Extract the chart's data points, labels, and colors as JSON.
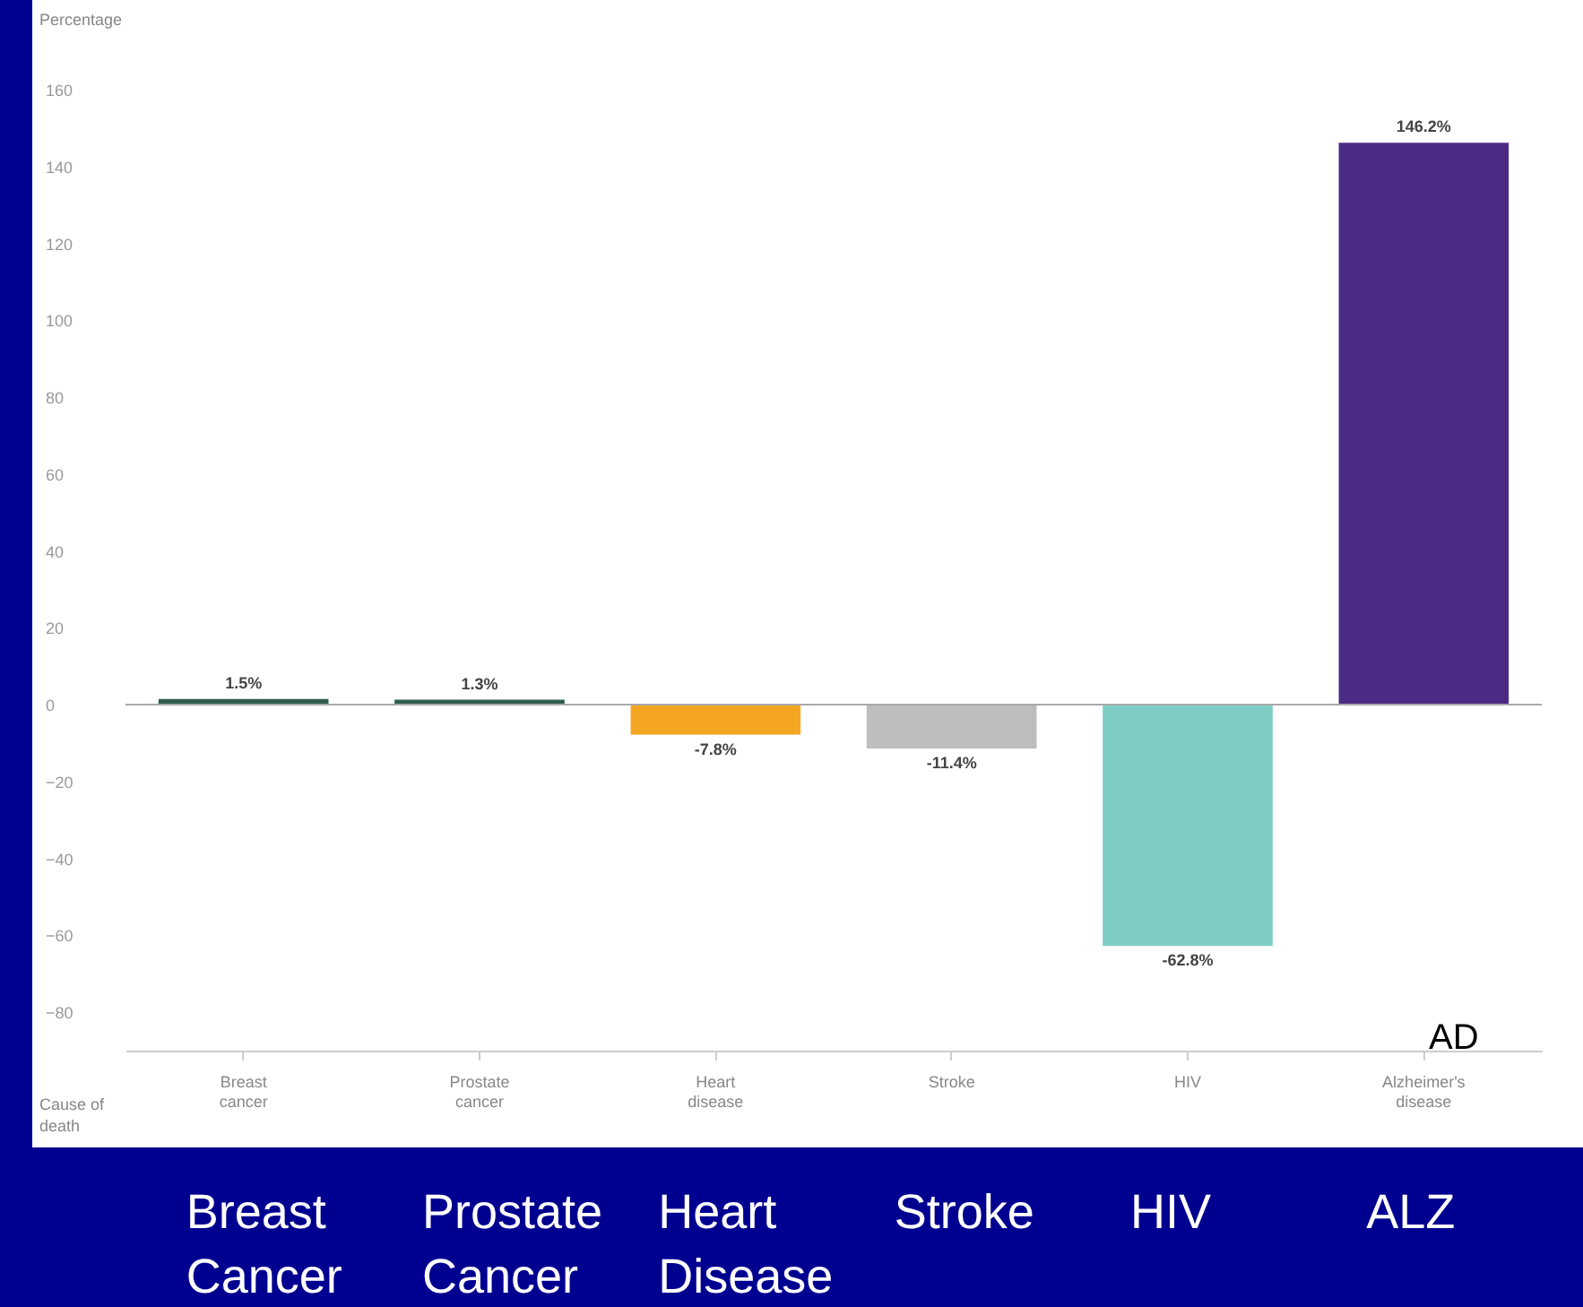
{
  "chart_data": {
    "type": "bar",
    "ylabel": "Percentage",
    "xlabel": "Cause of death",
    "categories": [
      "Breast cancer",
      "Prostate cancer",
      "Heart disease",
      "Stroke",
      "HIV",
      "Alzheimer's disease"
    ],
    "values": [
      1.5,
      1.3,
      -7.8,
      -11.4,
      -62.8,
      146.2
    ],
    "colors": [
      "#2f5d50",
      "#2f5d50",
      "#f4a623",
      "#bdbdbd",
      "#7ecdc4",
      "#4b2a85"
    ],
    "value_labels": [
      "1.5%",
      "1.3%",
      "-7.8%",
      "-11.4%",
      "-62.8%",
      "146.2%"
    ],
    "ylim": [
      -90,
      160
    ],
    "yticks": [
      -80,
      -60,
      -40,
      -20,
      0,
      20,
      40,
      60,
      80,
      100,
      120,
      140,
      160
    ],
    "grid": false,
    "ref_lines": [
      {
        "axis": "y",
        "value": 0,
        "color": "#aaaaaa"
      }
    ],
    "annotations": [
      "Breast\nCancer",
      "Prostate\nCancer",
      "Heart\nDisease",
      "Stroke",
      "HIV",
      "ALZ",
      "AD"
    ]
  }
}
